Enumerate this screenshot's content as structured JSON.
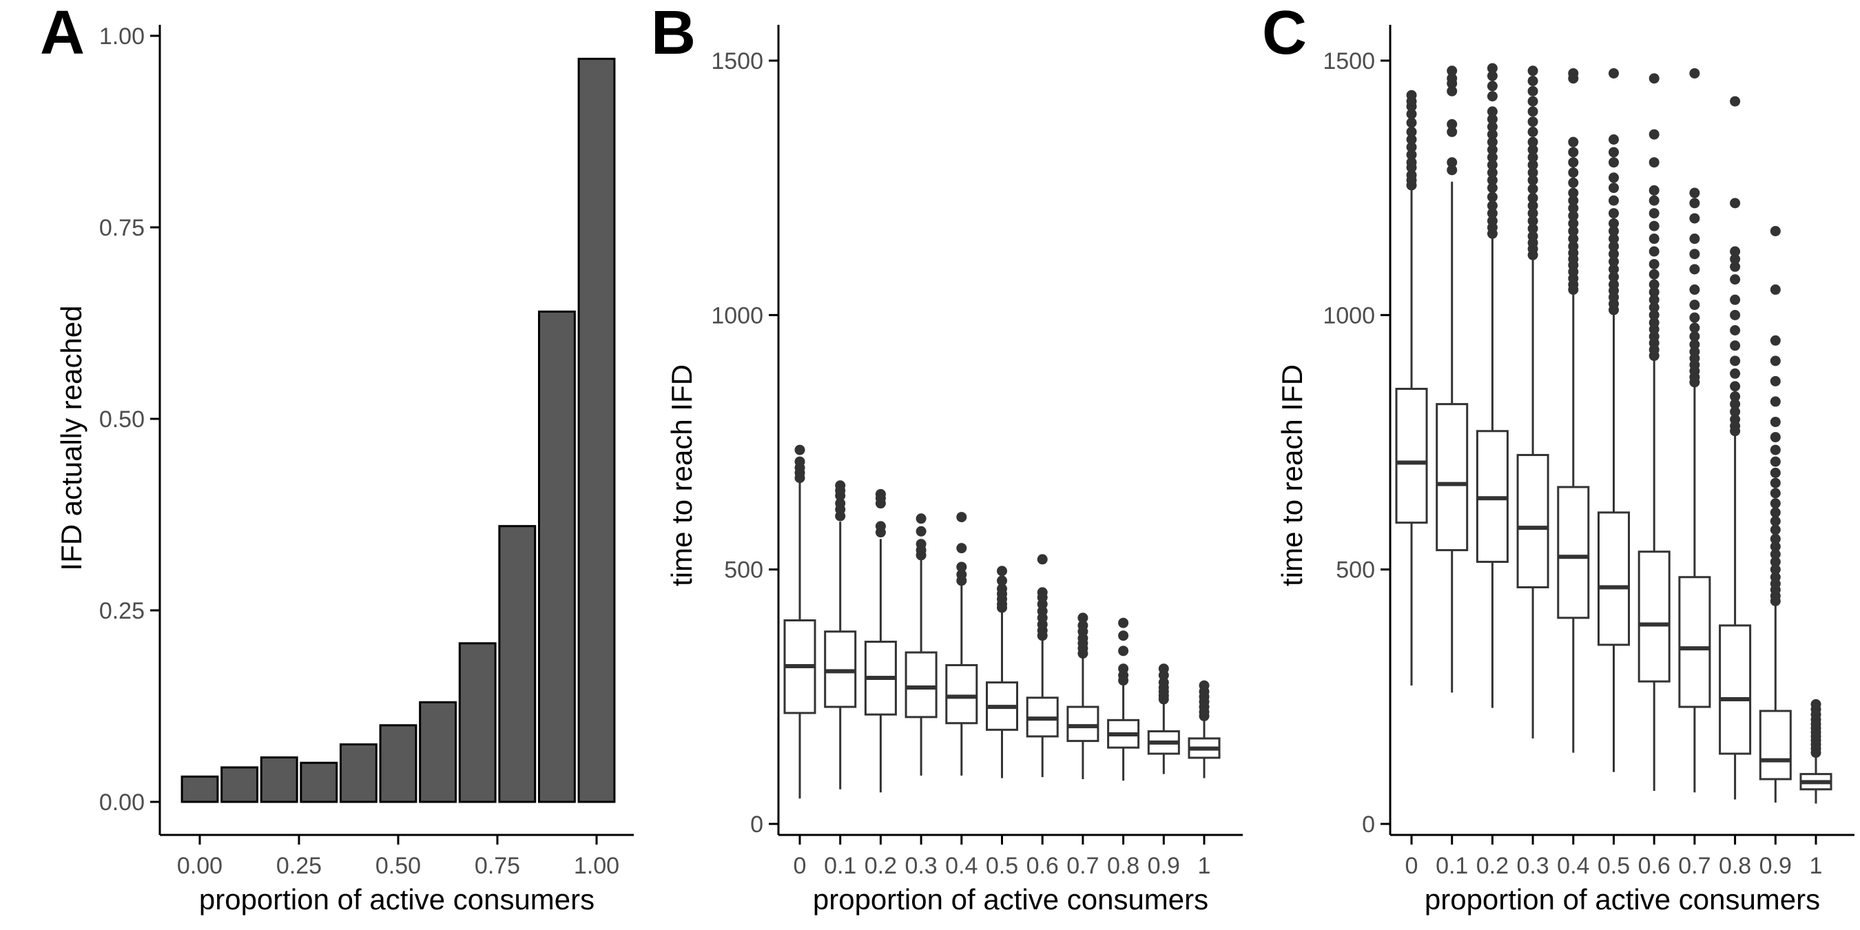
{
  "chart_data": [
    {
      "panel": "A",
      "type": "bar",
      "xlabel": "proportion of active consumers",
      "ylabel": "IFD actually reached",
      "x": [
        0,
        0.1,
        0.2,
        0.3,
        0.4,
        0.5,
        0.6,
        0.7,
        0.8,
        0.9,
        1.0
      ],
      "values": [
        0.033,
        0.045,
        0.058,
        0.051,
        0.075,
        0.1,
        0.13,
        0.207,
        0.36,
        0.64,
        0.97
      ],
      "xticks": [
        "0.00",
        "0.25",
        "0.50",
        "0.75",
        "1.00"
      ],
      "yticks": [
        "0.00",
        "0.25",
        "0.50",
        "0.75",
        "1.00"
      ],
      "ylim": [
        0,
        1.0
      ],
      "grid": false,
      "colors": {
        "bar_fill": "#595959",
        "bar_stroke": "#000000"
      }
    },
    {
      "panel": "B",
      "type": "box",
      "xlabel": "proportion of active consumers",
      "ylabel": "time to reach IFD",
      "categories": [
        "0",
        "0.1",
        "0.2",
        "0.3",
        "0.4",
        "0.5",
        "0.6",
        "0.7",
        "0.8",
        "0.9",
        "1"
      ],
      "yticks": [
        "0",
        "500",
        "1000",
        "1500"
      ],
      "ylim": [
        0,
        1500
      ],
      "grid": false,
      "boxes": [
        {
          "whisker_low": 50,
          "q1": 218,
          "median": 310,
          "q3": 400,
          "whisker_high": 672,
          "outliers": [
            680,
            690,
            700,
            712,
            735
          ]
        },
        {
          "whisker_low": 68,
          "q1": 230,
          "median": 300,
          "q3": 378,
          "whisker_high": 594,
          "outliers": [
            605,
            618,
            630,
            645,
            655,
            665
          ]
        },
        {
          "whisker_low": 62,
          "q1": 215,
          "median": 287,
          "q3": 358,
          "whisker_high": 560,
          "outliers": [
            573,
            585,
            630,
            640,
            648
          ]
        },
        {
          "whisker_low": 95,
          "q1": 210,
          "median": 268,
          "q3": 337,
          "whisker_high": 522,
          "outliers": [
            528,
            538,
            550,
            575,
            600
          ]
        },
        {
          "whisker_low": 95,
          "q1": 198,
          "median": 250,
          "q3": 312,
          "whisker_high": 470,
          "outliers": [
            478,
            490,
            505,
            542,
            603
          ]
        },
        {
          "whisker_low": 90,
          "q1": 185,
          "median": 230,
          "q3": 278,
          "whisker_high": 420,
          "outliers": [
            425,
            432,
            442,
            452,
            462,
            478,
            497
          ]
        },
        {
          "whisker_low": 92,
          "q1": 172,
          "median": 207,
          "q3": 248,
          "whisker_high": 365,
          "outliers": [
            370,
            380,
            392,
            405,
            418,
            432,
            445,
            455,
            520
          ]
        },
        {
          "whisker_low": 88,
          "q1": 163,
          "median": 192,
          "q3": 230,
          "whisker_high": 330,
          "outliers": [
            335,
            345,
            355,
            365,
            378,
            390,
            405
          ]
        },
        {
          "whisker_low": 85,
          "q1": 150,
          "median": 176,
          "q3": 204,
          "whisker_high": 275,
          "outliers": [
            282,
            292,
            305,
            340,
            370,
            395
          ]
        },
        {
          "whisker_low": 98,
          "q1": 138,
          "median": 160,
          "q3": 182,
          "whisker_high": 240,
          "outliers": [
            245,
            252,
            260,
            268,
            278,
            292,
            305
          ]
        },
        {
          "whisker_low": 90,
          "q1": 130,
          "median": 148,
          "q3": 168,
          "whisker_high": 205,
          "outliers": [
            212,
            220,
            230,
            240,
            250,
            260,
            272
          ]
        }
      ]
    },
    {
      "panel": "C",
      "type": "box",
      "xlabel": "proportion of active consumers",
      "ylabel": "time to reach IFD",
      "categories": [
        "0",
        "0.1",
        "0.2",
        "0.3",
        "0.4",
        "0.5",
        "0.6",
        "0.7",
        "0.8",
        "0.9",
        "1"
      ],
      "yticks": [
        "0",
        "500",
        "1000",
        "1500"
      ],
      "ylim": [
        0,
        1500
      ],
      "grid": false,
      "boxes": [
        {
          "whisker_low": 272,
          "q1": 592,
          "median": 710,
          "q3": 855,
          "whisker_high": 1248,
          "outliers": [
            1255,
            1265,
            1275,
            1290,
            1300,
            1315,
            1330,
            1345,
            1360,
            1378,
            1395,
            1410,
            1420,
            1432
          ]
        },
        {
          "whisker_low": 258,
          "q1": 538,
          "median": 668,
          "q3": 825,
          "whisker_high": 1262,
          "outliers": [
            1285,
            1300,
            1360,
            1375,
            1440,
            1455,
            1465,
            1480
          ]
        },
        {
          "whisker_low": 228,
          "q1": 515,
          "median": 640,
          "q3": 772,
          "whisker_high": 1155,
          "outliers": [
            1160,
            1172,
            1185,
            1200,
            1215,
            1232,
            1250,
            1265,
            1280,
            1295,
            1310,
            1325,
            1340,
            1355,
            1370,
            1385,
            1400,
            1430,
            1450,
            1470,
            1485
          ]
        },
        {
          "whisker_low": 168,
          "q1": 465,
          "median": 582,
          "q3": 725,
          "whisker_high": 1110,
          "outliers": [
            1118,
            1130,
            1142,
            1155,
            1170,
            1185,
            1200,
            1215,
            1230,
            1248,
            1265,
            1280,
            1295,
            1310,
            1325,
            1340,
            1360,
            1380,
            1400,
            1420,
            1440,
            1460,
            1480
          ]
        },
        {
          "whisker_low": 140,
          "q1": 405,
          "median": 525,
          "q3": 662,
          "whisker_high": 1045,
          "outliers": [
            1050,
            1060,
            1072,
            1085,
            1098,
            1110,
            1122,
            1135,
            1150,
            1165,
            1180,
            1195,
            1210,
            1225,
            1240,
            1260,
            1280,
            1300,
            1320,
            1340,
            1465,
            1475
          ]
        },
        {
          "whisker_low": 102,
          "q1": 352,
          "median": 465,
          "q3": 612,
          "whisker_high": 1002,
          "outliers": [
            1010,
            1022,
            1035,
            1048,
            1060,
            1075,
            1090,
            1105,
            1120,
            1135,
            1150,
            1165,
            1180,
            1200,
            1225,
            1250,
            1270,
            1300,
            1320,
            1345,
            1475
          ]
        },
        {
          "whisker_low": 65,
          "q1": 280,
          "median": 392,
          "q3": 535,
          "whisker_high": 912,
          "outliers": [
            920,
            932,
            945,
            958,
            972,
            985,
            1000,
            1015,
            1030,
            1045,
            1060,
            1080,
            1100,
            1125,
            1150,
            1175,
            1200,
            1225,
            1245,
            1300,
            1355,
            1465
          ]
        },
        {
          "whisker_low": 62,
          "q1": 230,
          "median": 345,
          "q3": 485,
          "whisker_high": 862,
          "outliers": [
            868,
            878,
            890,
            902,
            915,
            928,
            942,
            958,
            975,
            995,
            1020,
            1050,
            1090,
            1120,
            1150,
            1190,
            1220,
            1240,
            1475
          ]
        },
        {
          "whisker_low": 48,
          "q1": 138,
          "median": 245,
          "q3": 390,
          "whisker_high": 765,
          "outliers": [
            772,
            782,
            795,
            810,
            825,
            840,
            860,
            885,
            910,
            940,
            970,
            1000,
            1030,
            1070,
            1095,
            1110,
            1125,
            1220,
            1420
          ]
        },
        {
          "whisker_low": 42,
          "q1": 88,
          "median": 125,
          "q3": 222,
          "whisker_high": 430,
          "outliers": [
            438,
            448,
            460,
            472,
            485,
            500,
            515,
            530,
            545,
            560,
            578,
            595,
            612,
            630,
            650,
            670,
            690,
            712,
            735,
            760,
            790,
            830,
            870,
            910,
            950,
            1050,
            1165
          ]
        },
        {
          "whisker_low": 40,
          "q1": 68,
          "median": 82,
          "q3": 98,
          "whisker_high": 135,
          "outliers": [
            140,
            148,
            156,
            164,
            172,
            180,
            188,
            196,
            205,
            215,
            225,
            235
          ]
        }
      ]
    }
  ],
  "panel_labels": {
    "a": "A",
    "b": "B",
    "c": "C"
  },
  "colors": {
    "axis": "#000000",
    "box_stroke": "#333333",
    "outlier": "#333333",
    "tick_label": "#4d4d4d"
  }
}
